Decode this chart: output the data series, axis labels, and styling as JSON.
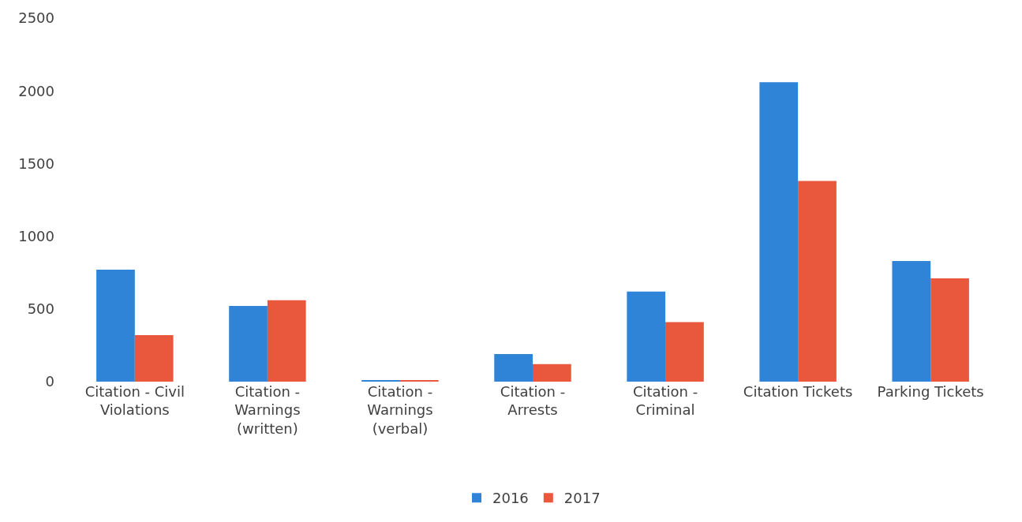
{
  "chart_data": {
    "type": "bar",
    "categories": [
      "Citation - Civil Violations",
      "Citation - Warnings (written)",
      "Citation - Warnings (verbal)",
      "Citation - Arrests",
      "Citation - Criminal",
      "Citation Tickets",
      "Parking Tickets"
    ],
    "series": [
      {
        "name": "2016",
        "color": "#2f84d8",
        "values": [
          770,
          520,
          10,
          190,
          620,
          2060,
          830
        ]
      },
      {
        "name": "2017",
        "color": "#e9573c",
        "values": [
          320,
          560,
          10,
          120,
          410,
          1380,
          710
        ]
      }
    ],
    "ylim": [
      0,
      2500
    ],
    "yticks": [
      0,
      500,
      1000,
      1500,
      2000,
      2500
    ],
    "grid": false,
    "legend": "bottom"
  }
}
